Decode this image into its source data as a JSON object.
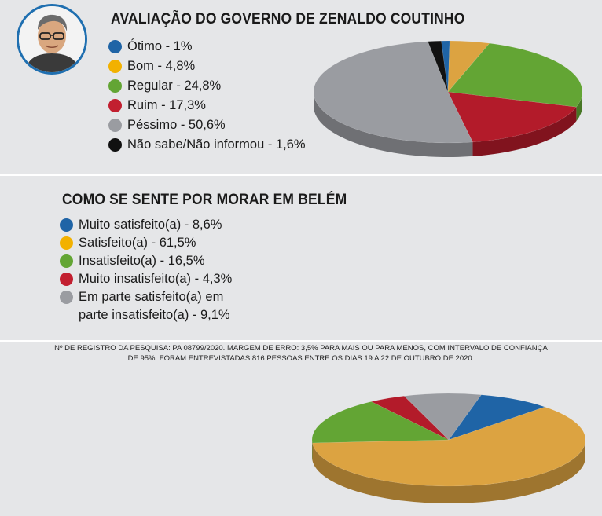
{
  "chart_data": [
    {
      "type": "pie",
      "title": "AVALIAÇÃO DO GOVERNO DE ZENALDO COUTINHO",
      "legend": "left",
      "slices": [
        {
          "label": "Ótimo - 1%",
          "value": 1,
          "color": "#1f64a6"
        },
        {
          "label": "Bom - 4,8%",
          "value": 4.8,
          "color": "#dca341"
        },
        {
          "label": "Regular - 24,8%",
          "value": 24.8,
          "color": "#63a534"
        },
        {
          "label": "Ruim - 17,3%",
          "value": 17.3,
          "color": "#b31b2a"
        },
        {
          "label": "Péssimo - 50,6%",
          "value": 50.6,
          "color": "#9a9ca1"
        },
        {
          "label": "Não sabe/Não informou - 1,6%",
          "value": 1.6,
          "color": "#111111"
        }
      ]
    },
    {
      "type": "pie",
      "title": "COMO SE SENTE POR MORAR EM BELÉM",
      "legend": "left",
      "slices": [
        {
          "label": "Muito satisfeito(a) - 8,6%",
          "value": 8.6,
          "color": "#1f64a6"
        },
        {
          "label": "Satisfeito(a) - 61,5%",
          "value": 61.5,
          "color": "#dca341"
        },
        {
          "label": "Insatisfeito(a) - 16,5%",
          "value": 16.5,
          "color": "#63a534"
        },
        {
          "label": "Muito insatisfeito(a) - 4,3%",
          "value": 4.3,
          "color": "#b31b2a"
        },
        {
          "label": "Em parte satisfeito(a) em",
          "label_line2": "parte insatisfeito(a) - 9,1%",
          "value": 9.1,
          "color": "#9a9ca1"
        }
      ]
    }
  ],
  "legend_dot_colors": {
    "blue": "#1f64a6",
    "yellow": "#f2b100",
    "green": "#63a534",
    "red": "#c21f30",
    "gray": "#9a9ca1",
    "black": "#111111"
  },
  "footer": {
    "line1": "Nº DE REGISTRO DA PESQUISA: PA 08799/2020. MARGEM DE ERRO: 3,5% PARA MAIS OU PARA MENOS, COM INTERVALO DE CONFIANÇA",
    "line2": "DE 95%. FORAM ENTREVISTADAS 816 PESSOAS ENTRE OS DIAS 19 A 22 DE OUTUBRO DE 2020."
  }
}
